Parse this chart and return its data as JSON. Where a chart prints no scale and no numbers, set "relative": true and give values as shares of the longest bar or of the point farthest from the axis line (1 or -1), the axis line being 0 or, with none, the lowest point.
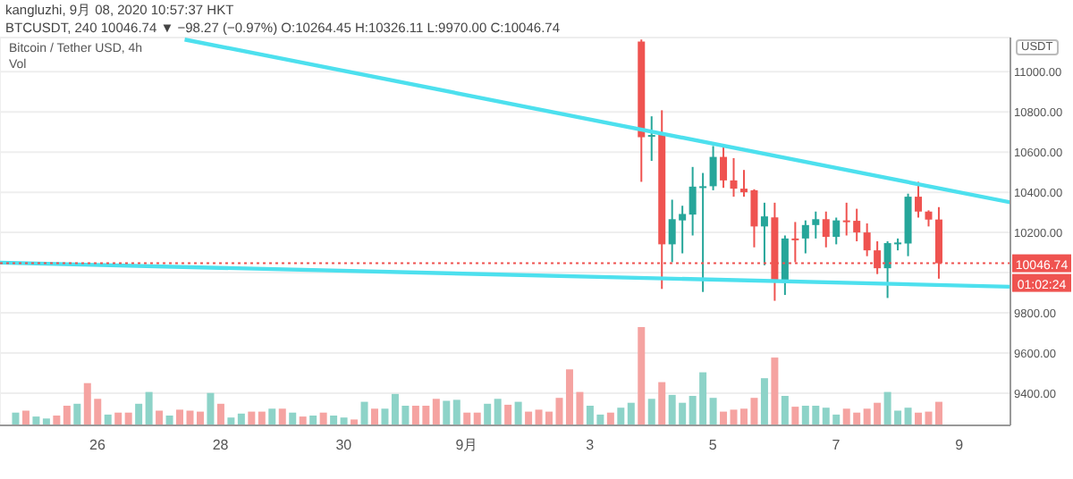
{
  "chart_data": [
    {
      "type": "candlestick",
      "title": "kangluzhi, 9月 08, 2020 10:57:37 HKT",
      "subtitle": "BTCUSDT, 240 10046.74 ▼ −98.27 (−0.97%) O:10264.45 H:10326.11 L:9970.00 C:10046.74",
      "ylabel": "USDT",
      "annotations": [
        "Bitcoin / Tether USD, 4h",
        "01:02:24"
      ],
      "series": [
        {
          "type": "line",
          "x": [
            "2020-08-27T10:00",
            "2020-09-09T20:00"
          ],
          "values": [
            11160,
            10350
          ],
          "color": "#4de0ee"
        },
        {
          "type": "line",
          "x": [
            "2020-08-24T10:00",
            "2020-09-09T20:00"
          ],
          "values": [
            10050,
            9930
          ],
          "color": "#4de0ee"
        },
        {
          "type": "candlestick",
          "x": [
            "2020-09-03T20:00",
            "2020-09-04T00:00",
            "2020-09-04T04:00",
            "2020-09-04T08:00",
            "2020-09-04T12:00",
            "2020-09-04T16:00",
            "2020-09-04T20:00",
            "2020-09-05T00:00",
            "2020-09-05T04:00",
            "2020-09-05T08:00",
            "2020-09-05T12:00",
            "2020-09-05T16:00",
            "2020-09-05T20:00",
            "2020-09-06T00:00",
            "2020-09-06T04:00",
            "2020-09-06T08:00",
            "2020-09-06T12:00",
            "2020-09-06T16:00",
            "2020-09-06T20:00",
            "2020-09-07T00:00",
            "2020-09-07T04:00",
            "2020-09-07T08:00",
            "2020-09-07T12:00",
            "2020-09-07T16:00",
            "2020-09-07T20:00",
            "2020-09-08T00:00",
            "2020-09-08T04:00",
            "2020-09-08T08:00",
            "2020-09-08T12:00",
            "2020-09-08T16:00"
          ],
          "ohlc": [
            [
              11150,
              11160,
              10452,
              10674
            ],
            [
              10680,
              10778,
              10556,
              10685
            ],
            [
              10690,
              10808,
              9919,
              10141
            ],
            [
              10141,
              10363,
              10052,
              10266
            ],
            [
              10260,
              10333,
              10096,
              10292
            ],
            [
              10289,
              10526,
              10185,
              10428
            ],
            [
              10425,
              10496,
              9904,
              10430
            ],
            [
              10430,
              10630,
              10410,
              10576
            ],
            [
              10576,
              10637,
              10422,
              10459
            ],
            [
              10459,
              10570,
              10378,
              10418
            ],
            [
              10418,
              10511,
              10378,
              10400
            ],
            [
              10410,
              10415,
              10126,
              10230
            ],
            [
              10230,
              10348,
              10037,
              10280
            ],
            [
              10275,
              10348,
              9860,
              9963
            ],
            [
              9963,
              10185,
              9889,
              10170
            ],
            [
              10170,
              10252,
              10052,
              10168
            ],
            [
              10170,
              10260,
              10096,
              10237
            ],
            [
              10237,
              10304,
              10170,
              10266
            ],
            [
              10266,
              10304,
              10126,
              10178
            ],
            [
              10178,
              10274,
              10141,
              10260
            ],
            [
              10260,
              10348,
              10185,
              10258
            ],
            [
              10258,
              10318,
              10156,
              10200
            ],
            [
              10200,
              10245,
              10082,
              10111
            ],
            [
              10111,
              10156,
              9993,
              10022
            ],
            [
              10022,
              10156,
              9874,
              10147
            ],
            [
              10147,
              10170,
              10111,
              10150
            ],
            [
              10145,
              10393,
              10082,
              10378
            ],
            [
              10378,
              10452,
              10274,
              10304
            ],
            [
              10304,
              10310,
              10230,
              10264
            ],
            [
              10264.45,
              10326.11,
              9970.0,
              10046.74
            ]
          ],
          "colors": [
            "#ef5350",
            "#26a69a",
            "#ef5350",
            "#26a69a",
            "#26a69a",
            "#26a69a",
            "#26a69a",
            "#26a69a",
            "#ef5350",
            "#ef5350",
            "#ef5350",
            "#ef5350",
            "#26a69a",
            "#ef5350",
            "#26a69a",
            "#ef5350",
            "#26a69a",
            "#26a69a",
            "#ef5350",
            "#26a69a",
            "#ef5350",
            "#ef5350",
            "#ef5350",
            "#ef5350",
            "#26a69a",
            "#26a69a",
            "#26a69a",
            "#ef5350",
            "#ef5350",
            "#ef5350"
          ]
        }
      ],
      "xlim": [
        "2020-08-24T10:00",
        "2020-09-09T20:00"
      ],
      "xticks": [
        {
          "value": "2020-08-26",
          "label": null
        },
        {
          "value": "2020-08-28",
          "label": null
        },
        {
          "value": "2020-08-30",
          "label": null
        },
        {
          "value": "2020-09-01",
          "label": null
        },
        {
          "value": "2020-09-03",
          "label": null
        },
        {
          "value": "2020-09-05",
          "label": null
        },
        {
          "value": "2020-09-07",
          "label": null
        },
        {
          "value": "2020-09-09",
          "label": null
        }
      ],
      "ylim": [
        9240,
        11170
      ],
      "yticks": [
        {
          "value": 9400,
          "label": "9400.00"
        },
        {
          "value": 9600,
          "label": "9600.00"
        },
        {
          "value": 9800,
          "label": "9800.00"
        },
        {
          "value": 10000,
          "label": null
        },
        {
          "value": 10200,
          "label": "10200.00"
        },
        {
          "value": 10400,
          "label": "10400.00"
        },
        {
          "value": 10600,
          "label": "10600.00"
        },
        {
          "value": 10800,
          "label": "10800.00"
        },
        {
          "value": 11000,
          "label": "11000.00"
        }
      ],
      "ref_lines": [
        {
          "axis": "y",
          "value": 10046.74,
          "label": "10046.74",
          "color": "#ef5350",
          "line_style": "dotted"
        }
      ],
      "grid": true,
      "tick_labels": "y"
    },
    {
      "type": "bar",
      "title": "Vol",
      "relative": true,
      "tick_labels": "x",
      "x": [
        "2020-08-24T16:00",
        "2020-08-24T20:00",
        "2020-08-25T00:00",
        "2020-08-25T04:00",
        "2020-08-25T08:00",
        "2020-08-25T12:00",
        "2020-08-25T16:00",
        "2020-08-25T20:00",
        "2020-08-26T00:00",
        "2020-08-26T04:00",
        "2020-08-26T08:00",
        "2020-08-26T12:00",
        "2020-08-26T16:00",
        "2020-08-26T20:00",
        "2020-08-27T00:00",
        "2020-08-27T04:00",
        "2020-08-27T08:00",
        "2020-08-27T12:00",
        "2020-08-27T16:00",
        "2020-08-27T20:00",
        "2020-08-28T00:00",
        "2020-08-28T04:00",
        "2020-08-28T08:00",
        "2020-08-28T12:00",
        "2020-08-28T16:00",
        "2020-08-28T20:00",
        "2020-08-29T00:00",
        "2020-08-29T04:00",
        "2020-08-29T08:00",
        "2020-08-29T12:00",
        "2020-08-29T16:00",
        "2020-08-29T20:00",
        "2020-08-30T00:00",
        "2020-08-30T04:00",
        "2020-08-30T08:00",
        "2020-08-30T12:00",
        "2020-08-30T16:00",
        "2020-08-30T20:00",
        "2020-08-31T00:00",
        "2020-08-31T04:00",
        "2020-08-31T08:00",
        "2020-08-31T12:00",
        "2020-08-31T16:00",
        "2020-08-31T20:00",
        "2020-09-01T00:00",
        "2020-09-01T04:00",
        "2020-09-01T08:00",
        "2020-09-01T12:00",
        "2020-09-01T16:00",
        "2020-09-01T20:00",
        "2020-09-02T00:00",
        "2020-09-02T04:00",
        "2020-09-02T08:00",
        "2020-09-02T12:00",
        "2020-09-02T16:00",
        "2020-09-02T20:00",
        "2020-09-03T00:00",
        "2020-09-03T04:00",
        "2020-09-03T08:00",
        "2020-09-03T12:00",
        "2020-09-03T16:00",
        "2020-09-03T20:00",
        "2020-09-04T00:00",
        "2020-09-04T04:00",
        "2020-09-04T08:00",
        "2020-09-04T12:00",
        "2020-09-04T16:00",
        "2020-09-04T20:00",
        "2020-09-05T00:00",
        "2020-09-05T04:00",
        "2020-09-05T08:00",
        "2020-09-05T12:00",
        "2020-09-05T16:00",
        "2020-09-05T20:00",
        "2020-09-06T00:00",
        "2020-09-06T04:00",
        "2020-09-06T08:00",
        "2020-09-06T12:00",
        "2020-09-06T16:00",
        "2020-09-06T20:00",
        "2020-09-07T00:00",
        "2020-09-07T04:00",
        "2020-09-07T08:00",
        "2020-09-07T12:00",
        "2020-09-07T16:00",
        "2020-09-07T20:00",
        "2020-09-08T00:00",
        "2020-09-08T04:00",
        "2020-09-08T08:00",
        "2020-09-08T12:00",
        "2020-09-08T16:00"
      ],
      "values": [
        0.13,
        0.15,
        0.09,
        0.07,
        0.1,
        0.2,
        0.22,
        0.43,
        0.27,
        0.11,
        0.13,
        0.13,
        0.22,
        0.34,
        0.15,
        0.1,
        0.16,
        0.15,
        0.14,
        0.33,
        0.22,
        0.08,
        0.12,
        0.14,
        0.14,
        0.17,
        0.17,
        0.13,
        0.09,
        0.1,
        0.13,
        0.1,
        0.08,
        0.06,
        0.24,
        0.17,
        0.17,
        0.32,
        0.2,
        0.2,
        0.2,
        0.27,
        0.25,
        0.26,
        0.13,
        0.13,
        0.22,
        0.27,
        0.21,
        0.24,
        0.14,
        0.16,
        0.14,
        0.28,
        0.57,
        0.34,
        0.2,
        0.11,
        0.13,
        0.18,
        0.23,
        1,
        0.27,
        0.44,
        0.31,
        0.23,
        0.3,
        0.54,
        0.28,
        0.14,
        0.16,
        0.17,
        0.28,
        0.48,
        0.69,
        0.3,
        0.19,
        0.2,
        0.2,
        0.18,
        0.11,
        0.17,
        0.13,
        0.17,
        0.23,
        0.34,
        0.15,
        0.18,
        0.13,
        0.14,
        0.24
      ],
      "colors": [
        "#8dd3c8",
        "#f5a3a1",
        "#8dd3c8",
        "#8dd3c8",
        "#f5a3a1",
        "#f5a3a1",
        "#8dd3c8",
        "#f5a3a1",
        "#f5a3a1",
        "#8dd3c8",
        "#f5a3a1",
        "#f5a3a1",
        "#8dd3c8",
        "#8dd3c8",
        "#f5a3a1",
        "#8dd3c8",
        "#f5a3a1",
        "#f5a3a1",
        "#f5a3a1",
        "#8dd3c8",
        "#f5a3a1",
        "#8dd3c8",
        "#8dd3c8",
        "#f5a3a1",
        "#f5a3a1",
        "#8dd3c8",
        "#f5a3a1",
        "#8dd3c8",
        "#f5a3a1",
        "#8dd3c8",
        "#f5a3a1",
        "#8dd3c8",
        "#8dd3c8",
        "#f5a3a1",
        "#8dd3c8",
        "#f5a3a1",
        "#8dd3c8",
        "#8dd3c8",
        "#8dd3c8",
        "#f5a3a1",
        "#f5a3a1",
        "#f5a3a1",
        "#8dd3c8",
        "#8dd3c8",
        "#f5a3a1",
        "#f5a3a1",
        "#8dd3c8",
        "#8dd3c8",
        "#f5a3a1",
        "#8dd3c8",
        "#f5a3a1",
        "#f5a3a1",
        "#f5a3a1",
        "#f5a3a1",
        "#f5a3a1",
        "#f5a3a1",
        "#8dd3c8",
        "#8dd3c8",
        "#f5a3a1",
        "#8dd3c8",
        "#8dd3c8",
        "#f5a3a1",
        "#8dd3c8",
        "#f5a3a1",
        "#8dd3c8",
        "#8dd3c8",
        "#8dd3c8",
        "#8dd3c8",
        "#8dd3c8",
        "#f5a3a1",
        "#f5a3a1",
        "#f5a3a1",
        "#f5a3a1",
        "#8dd3c8",
        "#f5a3a1",
        "#8dd3c8",
        "#f5a3a1",
        "#8dd3c8",
        "#8dd3c8",
        "#8dd3c8",
        "#8dd3c8",
        "#f5a3a1",
        "#f5a3a1",
        "#f5a3a1",
        "#f5a3a1",
        "#8dd3c8",
        "#8dd3c8",
        "#8dd3c8",
        "#f5a3a1",
        "#f5a3a1",
        "#f5a3a1"
      ],
      "xlim": [
        "2020-08-24T10:00",
        "2020-09-09T20:00"
      ],
      "xticks": [
        {
          "value": "2020-08-26",
          "label": "26"
        },
        {
          "value": "2020-08-28",
          "label": "28"
        },
        {
          "value": "2020-08-30",
          "label": "30"
        },
        {
          "value": "2020-09-01",
          "label": "9月"
        },
        {
          "value": "2020-09-03",
          "label": "3"
        },
        {
          "value": "2020-09-05",
          "label": "5"
        },
        {
          "value": "2020-09-07",
          "label": "7"
        },
        {
          "value": "2020-09-09",
          "label": "9"
        }
      ]
    }
  ]
}
